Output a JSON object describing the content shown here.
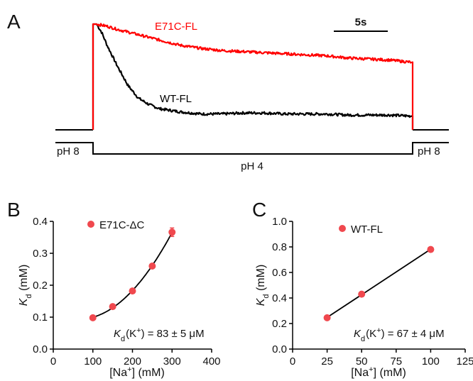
{
  "panels": {
    "A": "A",
    "B": "B",
    "C": "C"
  },
  "chart_data": [
    {
      "panel": "A",
      "type": "line",
      "xlabel": "",
      "ylabel": "",
      "scale_bar_label": "5s",
      "scale_bar_seconds": 5,
      "condition_labels": {
        "left": "pH 8",
        "middle": "pH 4",
        "right": "pH 8"
      },
      "colors": {
        "E71C-FL": "#ff0000",
        "WT-FL": "#000000"
      },
      "series": [
        {
          "name": "E71C-FL",
          "x": [
            0,
            0.5,
            1,
            2,
            4,
            6,
            8,
            10,
            12,
            14,
            16,
            18,
            20,
            22,
            24,
            26,
            28,
            30
          ],
          "y": [
            1.0,
            0.99,
            0.98,
            0.95,
            0.9,
            0.85,
            0.8,
            0.77,
            0.75,
            0.74,
            0.73,
            0.72,
            0.71,
            0.7,
            0.68,
            0.67,
            0.66,
            0.64
          ]
        },
        {
          "name": "WT-FL",
          "x": [
            0,
            0.5,
            1,
            2,
            3,
            4,
            5,
            6,
            8,
            10,
            12,
            14,
            16,
            18,
            20,
            22,
            24,
            26,
            28,
            30
          ],
          "y": [
            1.0,
            0.92,
            0.8,
            0.6,
            0.42,
            0.3,
            0.24,
            0.2,
            0.17,
            0.15,
            0.15,
            0.16,
            0.16,
            0.15,
            0.15,
            0.15,
            0.14,
            0.14,
            0.14,
            0.13
          ]
        }
      ]
    },
    {
      "panel": "B",
      "type": "scatter",
      "xlabel": "[Na+] (mM)",
      "ylabel": "Kd (mM)",
      "xlim": [
        0,
        400
      ],
      "ylim": [
        0,
        0.4
      ],
      "xticks": [
        "0",
        "100",
        "200",
        "300",
        "400"
      ],
      "yticks": [
        "0.0",
        "0.1",
        "0.2",
        "0.3",
        "0.4"
      ],
      "legend": "E71C-ΔC",
      "annotation": "Kd(K+) = 83 ± 5 μM",
      "fit": "curve",
      "marker_color": "#f0484e",
      "x": [
        100,
        150,
        200,
        250,
        300
      ],
      "y": [
        0.098,
        0.133,
        0.182,
        0.26,
        0.366
      ]
    },
    {
      "panel": "C",
      "type": "scatter",
      "xlabel": "[Na+] (mM)",
      "ylabel": "Kd (mM)",
      "xlim": [
        0,
        125
      ],
      "ylim": [
        0,
        1.0
      ],
      "xticks": [
        "0",
        "25",
        "50",
        "75",
        "100",
        "125"
      ],
      "yticks": [
        "0.0",
        "0.2",
        "0.4",
        "0.6",
        "0.8",
        "1.0"
      ],
      "legend": "WT-FL",
      "annotation": "Kd(K+) = 67 ± 4 μM",
      "fit": "linear",
      "marker_color": "#f0484e",
      "x": [
        25,
        50,
        100
      ],
      "y": [
        0.245,
        0.43,
        0.78
      ]
    }
  ]
}
